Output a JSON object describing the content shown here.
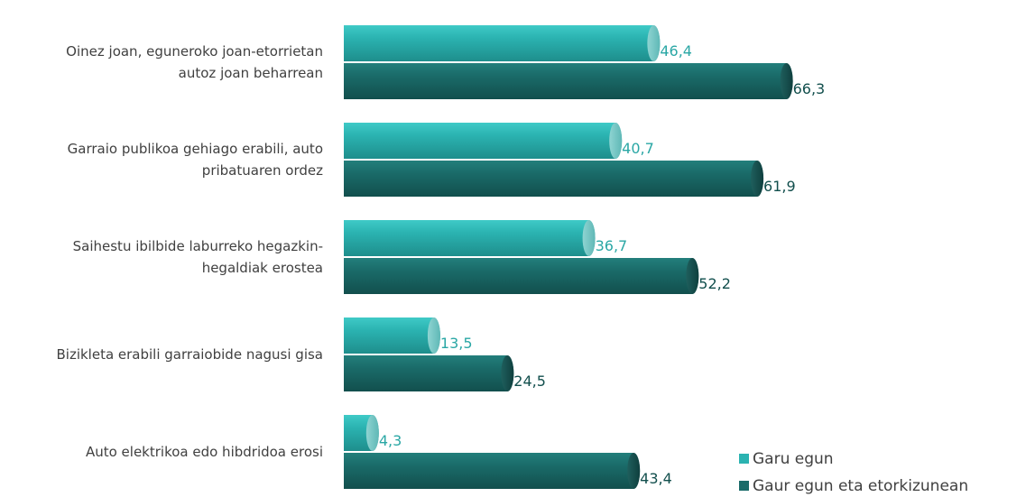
{
  "chart_data": {
    "type": "bar",
    "orientation": "horizontal",
    "categories": [
      [
        "Oinez joan, eguneroko joan-etorrietan",
        "autoz joan beharrean"
      ],
      [
        "Garraio publikoa gehiago erabili, auto",
        "pribatuaren ordez"
      ],
      [
        "Saihestu ibilbide laburreko hegazkin-",
        "hegaldiak erostea"
      ],
      [
        "Bizikleta erabili garraiobide nagusi gisa"
      ],
      [
        "Auto elektrikoa edo hibdridoa erosi"
      ]
    ],
    "series": [
      {
        "name": "Garu egun",
        "values": [
          46.4,
          40.7,
          36.7,
          13.5,
          4.3
        ],
        "labels": [
          "46,4",
          "40,7",
          "36,7",
          "13,5",
          "4,3"
        ],
        "color": "#2bb3b1"
      },
      {
        "name": "Gaur egun eta etorkizunean",
        "values": [
          66.3,
          61.9,
          52.2,
          24.5,
          43.4
        ],
        "labels": [
          "66,3",
          "61,9",
          "52,2",
          "24,5",
          "43,4"
        ],
        "color": "#1a6b69"
      }
    ],
    "title": "",
    "xlabel": "",
    "ylabel": "",
    "xlim": [
      0,
      100
    ],
    "grid": false,
    "legend_position": "bottom-right"
  }
}
